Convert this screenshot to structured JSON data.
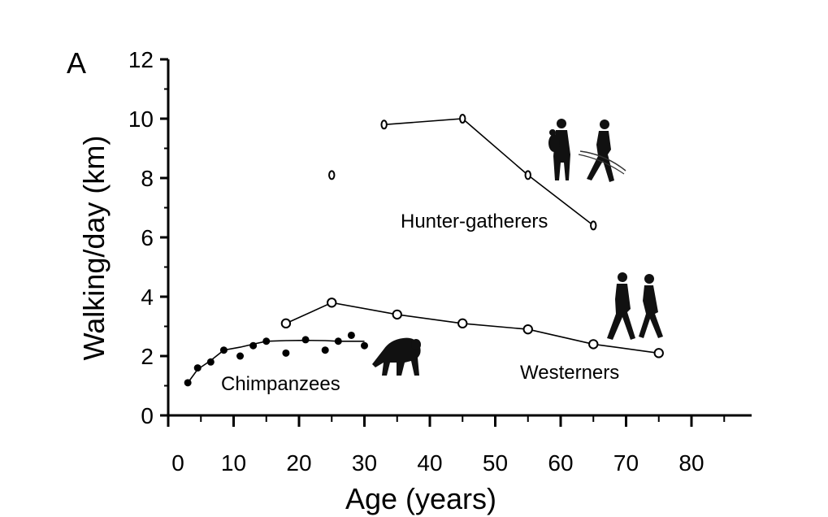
{
  "chart_data": {
    "type": "scatter",
    "panel_label": "A",
    "title": "",
    "xlabel": "Age (years)",
    "ylabel": "Walking/day (km)",
    "xlim": [
      0,
      90
    ],
    "ylim": [
      0,
      12
    ],
    "x_ticks": [
      "0",
      "10",
      "20",
      "30",
      "40",
      "50",
      "60",
      "70",
      "80"
    ],
    "y_ticks": [
      "0",
      "2",
      "4",
      "6",
      "8",
      "10",
      "12"
    ],
    "grid": false,
    "series": [
      {
        "name": "Hunter-gatherers",
        "marker": "open-oval",
        "line": "connected",
        "points": [
          [
            25,
            8.1
          ],
          [
            33,
            9.8
          ],
          [
            45,
            10.0
          ],
          [
            55,
            8.1
          ],
          [
            65,
            6.4
          ]
        ],
        "line_points": [
          [
            33,
            9.8
          ],
          [
            45,
            10.0
          ],
          [
            55,
            8.1
          ],
          [
            65,
            6.4
          ]
        ]
      },
      {
        "name": "Westerners",
        "marker": "open-circle",
        "line": "connected",
        "points": [
          [
            18,
            3.1
          ],
          [
            25,
            3.8
          ],
          [
            35,
            3.4
          ],
          [
            45,
            3.1
          ],
          [
            55,
            2.9
          ],
          [
            65,
            2.4
          ],
          [
            75,
            2.1
          ]
        ],
        "line_points": [
          [
            18,
            3.1
          ],
          [
            25,
            3.8
          ],
          [
            35,
            3.4
          ],
          [
            45,
            3.1
          ],
          [
            55,
            2.9
          ],
          [
            65,
            2.4
          ],
          [
            75,
            2.1
          ]
        ]
      },
      {
        "name": "Chimpanzees",
        "marker": "filled-circle",
        "line": "fitted",
        "points": [
          [
            3,
            1.1
          ],
          [
            4.5,
            1.6
          ],
          [
            6.5,
            1.8
          ],
          [
            8.5,
            2.2
          ],
          [
            11,
            2.0
          ],
          [
            13,
            2.35
          ],
          [
            15,
            2.5
          ],
          [
            18,
            2.1
          ],
          [
            21,
            2.55
          ],
          [
            24,
            2.2
          ],
          [
            26,
            2.5
          ],
          [
            28,
            2.7
          ],
          [
            30,
            2.35
          ]
        ],
        "line_points": [
          [
            3,
            1.1
          ],
          [
            4.5,
            1.55
          ],
          [
            6.5,
            1.85
          ],
          [
            8.5,
            2.2
          ],
          [
            11,
            2.3
          ],
          [
            13,
            2.4
          ],
          [
            15,
            2.5
          ],
          [
            18,
            2.52
          ],
          [
            21,
            2.53
          ],
          [
            24,
            2.52
          ],
          [
            26,
            2.5
          ],
          [
            28,
            2.5
          ],
          [
            30,
            2.5
          ]
        ]
      }
    ],
    "icons": [
      "hunter-gatherers-silhouette",
      "westerners-silhouette",
      "chimpanzee-silhouette"
    ]
  }
}
